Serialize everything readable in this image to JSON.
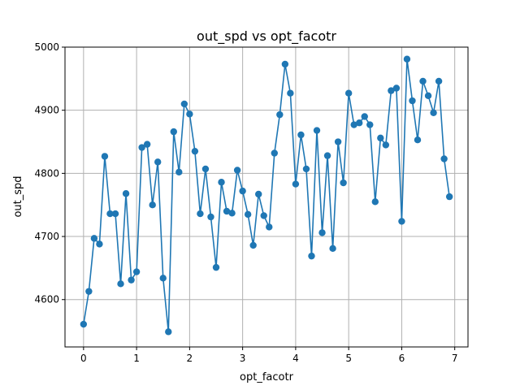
{
  "chart_data": {
    "type": "line",
    "title": "out_spd vs opt_facotr",
    "xlabel": "opt_facotr",
    "ylabel": "out_spd",
    "xlim": [
      -0.35,
      7.25
    ],
    "ylim": [
      4525,
      5000
    ],
    "xticks": [
      0,
      1,
      2,
      3,
      4,
      5,
      6,
      7
    ],
    "yticks": [
      4600,
      4700,
      4800,
      4900,
      5000
    ],
    "grid": true,
    "marker": "circle",
    "color": "#1f77b4",
    "x": [
      0.0,
      0.1,
      0.2,
      0.3,
      0.4,
      0.5,
      0.6,
      0.7,
      0.8,
      0.9,
      1.0,
      1.1,
      1.2,
      1.3,
      1.4,
      1.5,
      1.6,
      1.7,
      1.8,
      1.9,
      2.0,
      2.1,
      2.2,
      2.3,
      2.4,
      2.5,
      2.6,
      2.7,
      2.8,
      2.9,
      3.0,
      3.1,
      3.2,
      3.3,
      3.4,
      3.5,
      3.6,
      3.7,
      3.8,
      3.9,
      4.0,
      4.1,
      4.2,
      4.3,
      4.4,
      4.5,
      4.6,
      4.7,
      4.8,
      4.9,
      5.0,
      5.1,
      5.2,
      5.3,
      5.4,
      5.5,
      5.6,
      5.7,
      5.8,
      5.9,
      6.0,
      6.1,
      6.2,
      6.3,
      6.4,
      6.5,
      6.6,
      6.7,
      6.8,
      6.9
    ],
    "y": [
      4561,
      4613,
      4697,
      4688,
      4827,
      4736,
      4736,
      4625,
      4768,
      4631,
      4644,
      4841,
      4846,
      4750,
      4818,
      4634,
      4549,
      4866,
      4802,
      4910,
      4894,
      4835,
      4736,
      4807,
      4731,
      4651,
      4786,
      4740,
      4737,
      4805,
      4772,
      4735,
      4686,
      4767,
      4733,
      4715,
      4832,
      4893,
      4973,
      4927,
      4783,
      4861,
      4807,
      4669,
      4868,
      4706,
      4828,
      4681,
      4850,
      4785,
      4927,
      4877,
      4880,
      4890,
      4877,
      4755,
      4856,
      4845,
      4931,
      4935,
      4724,
      4981,
      4915,
      4853,
      4946,
      4923,
      4896,
      4946,
      4823,
      4763
    ]
  }
}
